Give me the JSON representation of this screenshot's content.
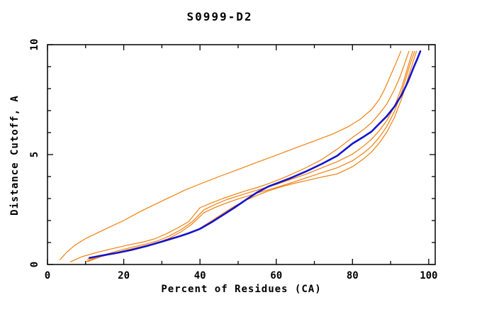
{
  "window": {
    "background": "#ffffff"
  },
  "chart_data": {
    "type": "line",
    "title": "S0999-D2",
    "xlabel": "Percent of Residues (CA)",
    "ylabel": "Distance Cutoff, A",
    "xlim": [
      0,
      101.7
    ],
    "ylim": [
      0,
      10
    ],
    "x_major_ticks": [
      0,
      20,
      40,
      60,
      80,
      100
    ],
    "x_minor_ticks": [
      10,
      30,
      50,
      70,
      90
    ],
    "y_major_ticks": [
      0,
      5,
      10
    ],
    "y_minor_ticks": [
      1,
      2,
      3,
      4,
      6,
      7,
      8,
      9
    ],
    "grid": false,
    "legend_position": "none",
    "axis_color": "#000000",
    "model_curve_color": "#f08010",
    "highlight_curve_color": "#1414cc",
    "series": [
      {
        "name": "orange-curve-1",
        "color": "#f08010",
        "width": 1.2,
        "points": [
          [
            3.3,
            0.22
          ],
          [
            5,
            0.55
          ],
          [
            7,
            0.85
          ],
          [
            10,
            1.18
          ],
          [
            13.5,
            1.47
          ],
          [
            17,
            1.76
          ],
          [
            20,
            2.0
          ],
          [
            24,
            2.38
          ],
          [
            28,
            2.72
          ],
          [
            32,
            3.05
          ],
          [
            36,
            3.38
          ],
          [
            40,
            3.66
          ],
          [
            45,
            4.0
          ],
          [
            50,
            4.32
          ],
          [
            55,
            4.65
          ],
          [
            60,
            4.97
          ],
          [
            65,
            5.3
          ],
          [
            70,
            5.62
          ],
          [
            75,
            5.95
          ],
          [
            79,
            6.28
          ],
          [
            82,
            6.6
          ],
          [
            85,
            7.05
          ],
          [
            87,
            7.5
          ],
          [
            88.5,
            8.0
          ],
          [
            90,
            8.6
          ],
          [
            91.5,
            9.2
          ],
          [
            92.7,
            9.7
          ]
        ]
      },
      {
        "name": "orange-curve-2",
        "color": "#f08010",
        "width": 1.2,
        "points": [
          [
            6,
            0.12
          ],
          [
            9,
            0.35
          ],
          [
            13,
            0.55
          ],
          [
            17,
            0.72
          ],
          [
            21,
            0.88
          ],
          [
            25,
            1.02
          ],
          [
            28,
            1.16
          ],
          [
            31,
            1.38
          ],
          [
            34,
            1.65
          ],
          [
            37,
            1.95
          ],
          [
            40,
            2.58
          ],
          [
            43,
            2.8
          ],
          [
            46,
            3.0
          ],
          [
            49,
            3.18
          ],
          [
            52,
            3.35
          ],
          [
            55,
            3.5
          ],
          [
            58,
            3.68
          ],
          [
            61,
            3.88
          ],
          [
            64,
            4.1
          ],
          [
            68,
            4.42
          ],
          [
            72,
            4.78
          ],
          [
            76,
            5.25
          ],
          [
            80,
            5.78
          ],
          [
            83,
            6.15
          ],
          [
            85,
            6.45
          ],
          [
            87,
            6.85
          ],
          [
            89,
            7.3
          ],
          [
            91,
            7.95
          ],
          [
            92.5,
            8.55
          ],
          [
            94,
            9.3
          ],
          [
            94.8,
            9.7
          ]
        ]
      },
      {
        "name": "orange-curve-3",
        "color": "#f08010",
        "width": 1.2,
        "points": [
          [
            10.3,
            0.15
          ],
          [
            14,
            0.4
          ],
          [
            18,
            0.6
          ],
          [
            22,
            0.78
          ],
          [
            26,
            0.94
          ],
          [
            29,
            1.08
          ],
          [
            32,
            1.3
          ],
          [
            35,
            1.58
          ],
          [
            38,
            1.95
          ],
          [
            41,
            2.48
          ],
          [
            44,
            2.74
          ],
          [
            47,
            2.95
          ],
          [
            50,
            3.12
          ],
          [
            53,
            3.28
          ],
          [
            56,
            3.44
          ],
          [
            60,
            3.64
          ],
          [
            64,
            3.88
          ],
          [
            68,
            4.12
          ],
          [
            72,
            4.4
          ],
          [
            76,
            4.68
          ],
          [
            80,
            5.02
          ],
          [
            83,
            5.4
          ],
          [
            85,
            5.7
          ],
          [
            87,
            6.08
          ],
          [
            89,
            6.55
          ],
          [
            91,
            7.18
          ],
          [
            93,
            8.1
          ],
          [
            94.8,
            9.15
          ],
          [
            95.8,
            9.7
          ]
        ]
      },
      {
        "name": "orange-curve-4",
        "color": "#f08010",
        "width": 1.2,
        "points": [
          [
            10.5,
            0.13
          ],
          [
            14,
            0.35
          ],
          [
            18,
            0.54
          ],
          [
            22,
            0.71
          ],
          [
            26,
            0.87
          ],
          [
            29,
            1.0
          ],
          [
            32,
            1.2
          ],
          [
            35,
            1.48
          ],
          [
            38,
            1.85
          ],
          [
            41,
            2.35
          ],
          [
            44,
            2.6
          ],
          [
            47,
            2.8
          ],
          [
            50,
            2.98
          ],
          [
            53,
            3.14
          ],
          [
            56,
            3.3
          ],
          [
            60,
            3.5
          ],
          [
            64,
            3.72
          ],
          [
            68,
            3.95
          ],
          [
            72,
            4.18
          ],
          [
            76,
            4.4
          ],
          [
            80,
            4.72
          ],
          [
            83,
            5.08
          ],
          [
            85,
            5.38
          ],
          [
            87,
            5.78
          ],
          [
            89,
            6.28
          ],
          [
            91,
            6.95
          ],
          [
            93,
            7.9
          ],
          [
            95,
            9.05
          ],
          [
            96.3,
            9.7
          ]
        ]
      },
      {
        "name": "orange-curve-5",
        "color": "#f08010",
        "width": 1.2,
        "points": [
          [
            10.5,
            0.24
          ],
          [
            14,
            0.38
          ],
          [
            18,
            0.51
          ],
          [
            22,
            0.65
          ],
          [
            26,
            0.82
          ],
          [
            30,
            1.02
          ],
          [
            34,
            1.23
          ],
          [
            37,
            1.4
          ],
          [
            40,
            1.65
          ],
          [
            43,
            1.98
          ],
          [
            46,
            2.32
          ],
          [
            49,
            2.65
          ],
          [
            52,
            2.92
          ],
          [
            55,
            3.15
          ],
          [
            58,
            3.35
          ],
          [
            61,
            3.52
          ],
          [
            64,
            3.66
          ],
          [
            68,
            3.82
          ],
          [
            72,
            3.98
          ],
          [
            76,
            4.12
          ],
          [
            80,
            4.45
          ],
          [
            83,
            4.82
          ],
          [
            85,
            5.12
          ],
          [
            87,
            5.52
          ],
          [
            89,
            6.02
          ],
          [
            91,
            6.68
          ],
          [
            93,
            7.6
          ],
          [
            95,
            8.75
          ],
          [
            96.8,
            9.7
          ]
        ]
      },
      {
        "name": "blue-curve",
        "color": "#1414cc",
        "width": 2.6,
        "points": [
          [
            11,
            0.3
          ],
          [
            14,
            0.4
          ],
          [
            18,
            0.52
          ],
          [
            22,
            0.66
          ],
          [
            26,
            0.84
          ],
          [
            30,
            1.04
          ],
          [
            34,
            1.25
          ],
          [
            37,
            1.42
          ],
          [
            40,
            1.62
          ],
          [
            43,
            1.92
          ],
          [
            46,
            2.25
          ],
          [
            49,
            2.58
          ],
          [
            52,
            2.94
          ],
          [
            55,
            3.28
          ],
          [
            58,
            3.55
          ],
          [
            61,
            3.75
          ],
          [
            64,
            3.95
          ],
          [
            68,
            4.25
          ],
          [
            72,
            4.58
          ],
          [
            76,
            4.95
          ],
          [
            80,
            5.5
          ],
          [
            83,
            5.82
          ],
          [
            85,
            6.05
          ],
          [
            87,
            6.4
          ],
          [
            89,
            6.75
          ],
          [
            91,
            7.18
          ],
          [
            93,
            7.75
          ],
          [
            94.5,
            8.3
          ],
          [
            96,
            8.95
          ],
          [
            97,
            9.35
          ],
          [
            97.8,
            9.7
          ]
        ]
      }
    ]
  }
}
